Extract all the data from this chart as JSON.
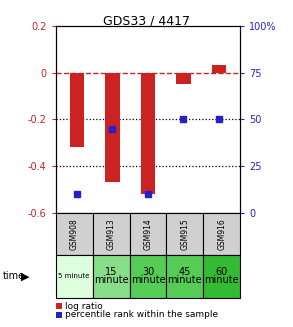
{
  "title": "GDS33 / 4417",
  "samples": [
    "GSM908",
    "GSM913",
    "GSM914",
    "GSM915",
    "GSM916"
  ],
  "time_labels_line1": [
    "5 minute",
    "15",
    "30",
    "45",
    "60"
  ],
  "time_labels_line2": [
    "",
    "minute",
    "minute",
    "minute",
    "minute"
  ],
  "time_colors": [
    "#ddffdd",
    "#88dd88",
    "#55cc55",
    "#55cc55",
    "#33bb33"
  ],
  "log_ratio": [
    -0.32,
    -0.47,
    -0.52,
    -0.05,
    0.035
  ],
  "percentile_rank_pct": [
    10,
    45,
    10,
    50,
    50
  ],
  "ylim_left": [
    -0.6,
    0.2
  ],
  "ylim_right": [
    0,
    100
  ],
  "bar_color": "#cc2222",
  "dot_color": "#2222cc",
  "zero_line_color": "#cc2222",
  "plot_bg": "#ffffff",
  "left_tick_positions": [
    0.2,
    0.0,
    -0.2,
    -0.4,
    -0.6
  ],
  "left_tick_labels": [
    "0.2",
    "0",
    "-0.2",
    "-0.4",
    "-0.6"
  ],
  "right_tick_positions": [
    100,
    75,
    50,
    25,
    0
  ],
  "right_tick_labels": [
    "100%",
    "75",
    "50",
    "25",
    "0"
  ]
}
